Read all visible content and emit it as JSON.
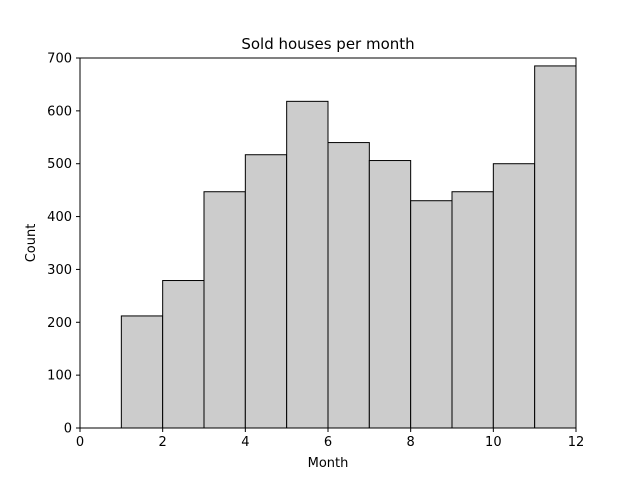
{
  "chart_data": {
    "type": "bar",
    "title": "Sold houses per month",
    "xlabel": "Month",
    "ylabel": "Count",
    "xlim": [
      0,
      12
    ],
    "ylim": [
      0,
      700
    ],
    "xticks": [
      0,
      2,
      4,
      6,
      8,
      10,
      12
    ],
    "yticks": [
      0,
      100,
      200,
      300,
      400,
      500,
      600,
      700
    ],
    "grid": false,
    "bins": [
      {
        "x0": 1,
        "x1": 2,
        "value": 212
      },
      {
        "x0": 2,
        "x1": 3,
        "value": 279
      },
      {
        "x0": 3,
        "x1": 4,
        "value": 447
      },
      {
        "x0": 4,
        "x1": 5,
        "value": 517
      },
      {
        "x0": 5,
        "x1": 6,
        "value": 618
      },
      {
        "x0": 6,
        "x1": 7,
        "value": 540
      },
      {
        "x0": 7,
        "x1": 8,
        "value": 506
      },
      {
        "x0": 8,
        "x1": 9,
        "value": 430
      },
      {
        "x0": 9,
        "x1": 10,
        "value": 447
      },
      {
        "x0": 10,
        "x1": 11,
        "value": 500
      },
      {
        "x0": 11,
        "x1": 12,
        "value": 685
      }
    ],
    "bar_color": "#cccccc",
    "edge_color": "#000000"
  }
}
